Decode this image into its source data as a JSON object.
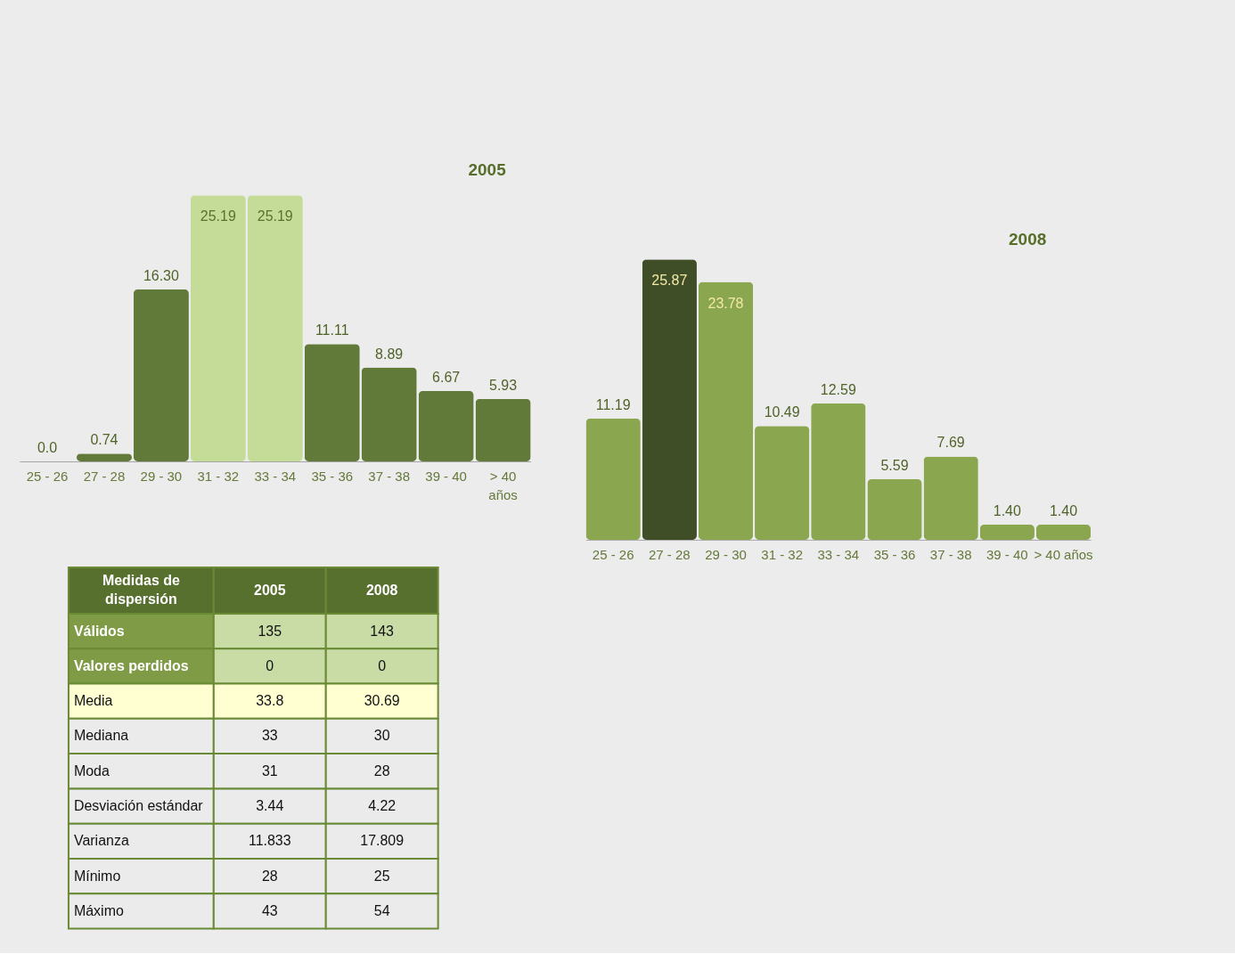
{
  "chart_data": [
    {
      "type": "bar",
      "title": "2005",
      "categories": [
        "25 - 26",
        "27 - 28",
        "29 - 30",
        "31 - 32",
        "33 - 34",
        "35 - 36",
        "37 - 38",
        "39 - 40",
        "> 40 años"
      ],
      "values": [
        0.0,
        0.74,
        16.3,
        25.19,
        25.19,
        11.11,
        8.89,
        6.67,
        5.93
      ],
      "colors": [
        "#617a3a",
        "#617a3a",
        "#617a3a",
        "#c4dc98",
        "#c4dc98",
        "#617a3a",
        "#617a3a",
        "#617a3a",
        "#617a3a"
      ],
      "value_labels": [
        "0.0",
        "0.74",
        "16.30",
        "25.19",
        "25.19",
        "11.11",
        "8.89",
        "6.67",
        "5.93"
      ]
    },
    {
      "type": "bar",
      "title": "2008",
      "categories": [
        "25 - 26",
        "27 - 28",
        "29 - 30",
        "31 - 32",
        "33 - 34",
        "35 - 36",
        "37 - 38",
        "39 - 40",
        "> 40 años"
      ],
      "values": [
        11.19,
        25.87,
        23.78,
        10.49,
        12.59,
        5.59,
        7.69,
        1.4,
        1.4
      ],
      "colors": [
        "#8aa64f",
        "#404e27",
        "#8aa64f",
        "#8aa64f",
        "#8aa64f",
        "#8aa64f",
        "#8aa64f",
        "#8aa64f",
        "#8aa64f"
      ],
      "value_labels": [
        "11.19",
        "25.87",
        "23.78",
        "10.49",
        "12.59",
        "5.59",
        "7.69",
        "1.40",
        "1.40"
      ]
    },
    {
      "type": "other",
      "title": "Medidas de dispersión",
      "categories": [
        "2005",
        "2008"
      ],
      "y_categories": [
        "Válidos",
        "Valores perdidos",
        "Media",
        "Mediana",
        "Moda",
        "Desviación estándar",
        "Varianza",
        "Mínimo",
        "Máximo"
      ],
      "cell_labels": [
        [
          "135",
          "143"
        ],
        [
          "0",
          "0"
        ],
        [
          "33.8",
          "30.69"
        ],
        [
          "33",
          "30"
        ],
        [
          "31",
          "28"
        ],
        [
          "3.44",
          "4.22"
        ],
        [
          "11.833",
          "17.809"
        ],
        [
          "28",
          "25"
        ],
        [
          "43",
          "54"
        ]
      ]
    }
  ]
}
